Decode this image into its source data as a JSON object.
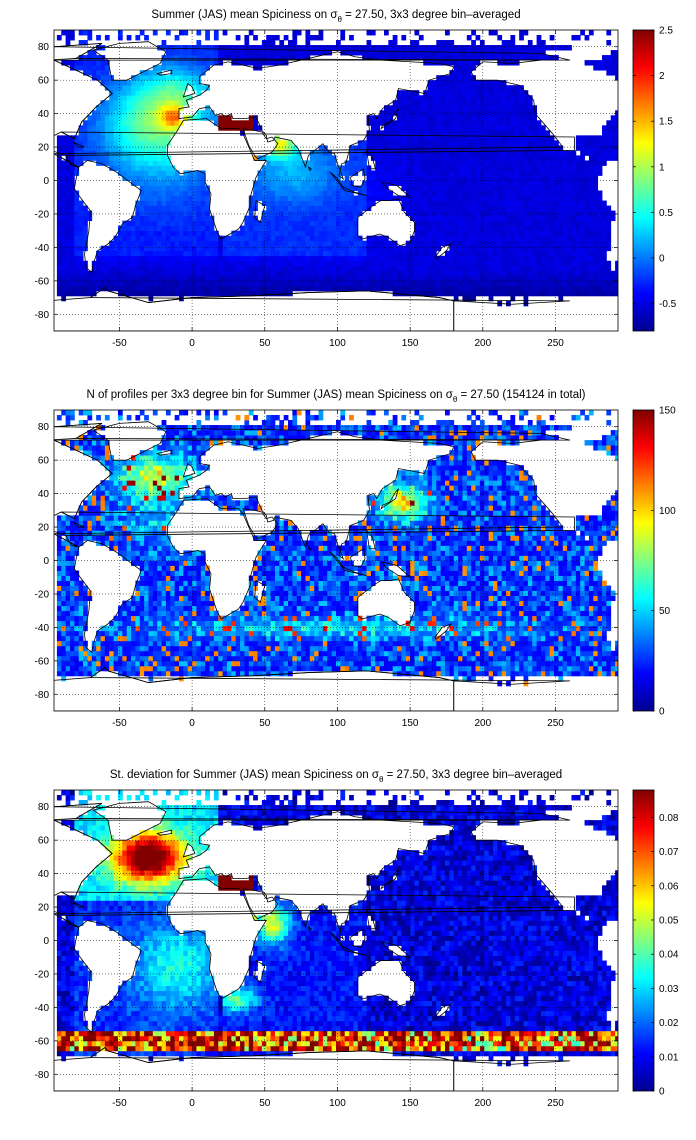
{
  "chart_data": [
    {
      "type": "heatmap",
      "title_main": "Summer (JAS) mean Spiciness on σ",
      "title_sub": "θ",
      "title_rest": " = 27.50, 3x3 degree bin–averaged",
      "xlim": [
        -95,
        293
      ],
      "ylim": [
        -90,
        90
      ],
      "x_ticks": [
        -50,
        0,
        50,
        100,
        150,
        200,
        250
      ],
      "y_ticks": [
        80,
        60,
        40,
        20,
        0,
        -20,
        -40,
        -60,
        -80
      ],
      "grid": true,
      "colormap": "jet",
      "colorbar": {
        "min": -0.8,
        "max": 2.5,
        "ticks": [
          -0.5,
          0,
          0.5,
          1,
          1.5,
          2,
          2.5
        ]
      }
    },
    {
      "type": "heatmap",
      "title_main": "N of profiles per 3x3 degree bin for Summer (JAS) mean Spiciness on σ",
      "title_sub": "θ",
      "title_rest": " = 27.50 (154124 in total)",
      "xlim": [
        -95,
        293
      ],
      "ylim": [
        -90,
        90
      ],
      "x_ticks": [
        -50,
        0,
        50,
        100,
        150,
        200,
        250
      ],
      "y_ticks": [
        80,
        60,
        40,
        20,
        0,
        -20,
        -40,
        -60,
        -80
      ],
      "grid": true,
      "colormap": "jet",
      "colorbar": {
        "min": 0,
        "max": 150,
        "ticks": [
          0,
          50,
          100,
          150
        ]
      }
    },
    {
      "type": "heatmap",
      "title_main": "St. deviation for Summer (JAS) mean Spiciness on σ",
      "title_sub": "θ",
      "title_rest": " = 27.50, 3x3 degree bin–averaged",
      "xlim": [
        -95,
        293
      ],
      "ylim": [
        -90,
        90
      ],
      "x_ticks": [
        -50,
        0,
        50,
        100,
        150,
        200,
        250
      ],
      "y_ticks": [
        80,
        60,
        40,
        20,
        0,
        -20,
        -40,
        -60,
        -80
      ],
      "grid": true,
      "colormap": "jet",
      "colorbar": {
        "min": 0,
        "max": 0.088,
        "ticks": [
          0,
          0.01,
          0.02,
          0.03,
          0.04,
          0.05,
          0.06,
          0.07,
          0.08
        ]
      }
    }
  ]
}
